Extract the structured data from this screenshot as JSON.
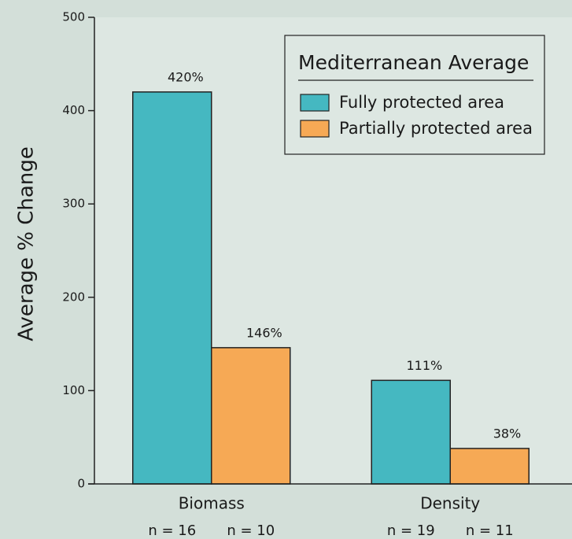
{
  "chart_data": {
    "type": "bar",
    "ylabel": "Average % Change",
    "categories": [
      "Biomass",
      "Density"
    ],
    "series": [
      {
        "name": "Fully protected area",
        "color": "#45b8c1",
        "values": [
          420,
          111
        ],
        "value_labels": [
          "420%",
          "111%"
        ],
        "sample_sizes": [
          "n = 16",
          "n = 19"
        ]
      },
      {
        "name": "Partially protected area",
        "color": "#f6a955",
        "values": [
          146,
          38
        ],
        "value_labels": [
          "146%",
          "38%"
        ],
        "sample_sizes": [
          "n = 10",
          "n = 11"
        ]
      }
    ],
    "legend_title": "Mediterranean Average",
    "legend": "upper right",
    "ylim": [
      0,
      500
    ],
    "yticks": [
      0,
      100,
      200,
      300,
      400,
      500
    ]
  }
}
